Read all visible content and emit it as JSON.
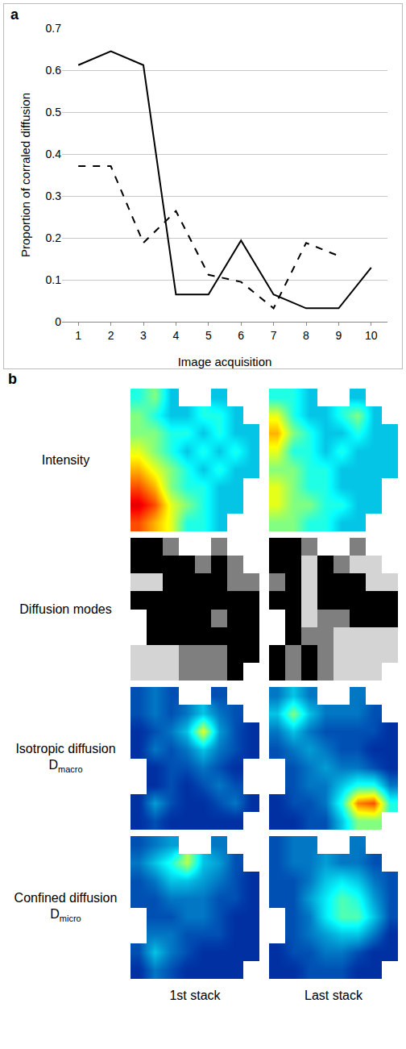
{
  "chart_data": [
    {
      "type": "line",
      "panel": "a",
      "x_label": "Image acquisition",
      "y_label": "Proportion of corraled diffusion",
      "x": [
        1,
        2,
        3,
        4,
        5,
        6,
        7,
        8,
        9,
        10
      ],
      "series": [
        {
          "color": "#000000",
          "line_style": "solid",
          "values": [
            0.612,
            0.645,
            0.612,
            0.065,
            0.065,
            0.194,
            0.065,
            0.032,
            0.032,
            0.129
          ]
        },
        {
          "color": "#000000",
          "line_style": "dash",
          "values": [
            0.371,
            0.371,
            0.188,
            0.264,
            0.112,
            0.095,
            0.032,
            0.188,
            0.157,
            null
          ]
        }
      ],
      "xlim": [
        0.5,
        10.5
      ],
      "xticks": [
        1,
        2,
        3,
        4,
        5,
        6,
        7,
        8,
        9,
        10
      ],
      "ylim": [
        0,
        0.7
      ],
      "yticks": [
        0,
        0.1,
        0.2,
        0.3,
        0.4,
        0.5,
        0.6,
        0.7
      ],
      "grid": true
    },
    {
      "type": "heatmap",
      "panel": "b",
      "columns": [
        "1st stack",
        "Last stack"
      ],
      "rows": [
        {
          "label": "Intensity",
          "color": "Jet",
          "zlim": [
            0,
            1
          ],
          "cells": [
            [
              [
                0.4,
                0.5,
                0.3,
                null,
                null,
                0.3,
                null,
                null
              ],
              [
                0.5,
                0.4,
                0.3,
                0.3,
                0.4,
                0.4,
                0.3,
                null
              ],
              [
                0.5,
                0.5,
                0.4,
                0.4,
                0.3,
                0.4,
                0.3,
                0.3
              ],
              [
                0.6,
                0.5,
                0.4,
                0.3,
                0.4,
                0.3,
                0.4,
                0.3
              ],
              [
                0.7,
                0.6,
                0.5,
                0.4,
                0.3,
                0.4,
                0.3,
                0.3
              ],
              [
                0.8,
                0.7,
                0.5,
                0.4,
                0.4,
                0.3,
                0.3,
                null
              ],
              [
                0.9,
                0.8,
                0.6,
                0.5,
                0.4,
                0.3,
                0.3,
                null
              ],
              [
                0.8,
                0.7,
                0.6,
                0.4,
                0.4,
                0.3,
                null,
                null
              ]
            ],
            [
              [
                0.4,
                0.4,
                0.3,
                null,
                null,
                0.3,
                null,
                null
              ],
              [
                0.6,
                0.4,
                0.3,
                0.3,
                0.4,
                0.5,
                0.3,
                null
              ],
              [
                0.7,
                0.5,
                0.4,
                0.3,
                0.3,
                0.4,
                0.3,
                0.3
              ],
              [
                0.6,
                0.4,
                0.4,
                0.3,
                0.4,
                0.3,
                0.3,
                0.3
              ],
              [
                0.5,
                0.5,
                0.4,
                0.4,
                0.3,
                0.3,
                0.3,
                0.3
              ],
              [
                0.6,
                0.5,
                0.4,
                0.4,
                0.3,
                0.3,
                0.3,
                null
              ],
              [
                0.6,
                0.5,
                0.5,
                0.4,
                0.4,
                0.3,
                0.3,
                null
              ],
              [
                0.5,
                0.5,
                0.4,
                0.4,
                0.3,
                0.3,
                null,
                null
              ]
            ]
          ]
        },
        {
          "label": "Diffusion modes",
          "color": "gray",
          "zlim": [
            0,
            2
          ],
          "cells": [
            [
              [
                0,
                0,
                1,
                null,
                null,
                1,
                null,
                null
              ],
              [
                0,
                0,
                0,
                0,
                1,
                0,
                1,
                null
              ],
              [
                2,
                2,
                0,
                0,
                0,
                0,
                1,
                1
              ],
              [
                0,
                0,
                0,
                0,
                0,
                0,
                0,
                0
              ],
              [
                null,
                0,
                0,
                0,
                0,
                1,
                0,
                0
              ],
              [
                null,
                0,
                0,
                0,
                0,
                0,
                0,
                0
              ],
              [
                2,
                2,
                2,
                1,
                1,
                1,
                0,
                0
              ],
              [
                2,
                2,
                2,
                1,
                1,
                1,
                0,
                null
              ]
            ],
            [
              [
                0,
                0,
                1,
                null,
                null,
                1,
                null,
                null
              ],
              [
                0,
                0,
                2,
                0,
                1,
                2,
                2,
                null
              ],
              [
                1,
                0,
                2,
                0,
                0,
                0,
                2,
                2
              ],
              [
                0,
                0,
                2,
                0,
                0,
                0,
                0,
                0
              ],
              [
                null,
                0,
                2,
                1,
                1,
                0,
                0,
                0
              ],
              [
                null,
                0,
                1,
                1,
                2,
                2,
                2,
                2
              ],
              [
                0,
                1,
                0,
                1,
                2,
                2,
                2,
                2
              ],
              [
                0,
                1,
                0,
                1,
                2,
                2,
                2,
                null
              ]
            ]
          ]
        },
        {
          "label": "Isotropic diffusion",
          "symbol": "D",
          "subscript": "macro",
          "color": "Jet",
          "zlim": [
            0,
            1
          ],
          "cells": [
            [
              [
                0.15,
                0.2,
                0.15,
                null,
                null,
                0.15,
                null,
                null
              ],
              [
                0.15,
                0.2,
                0.15,
                0.2,
                0.3,
                0.2,
                0.15,
                null
              ],
              [
                0.1,
                0.15,
                0.2,
                0.3,
                0.6,
                0.25,
                0.15,
                0.1
              ],
              [
                0.1,
                0.2,
                0.15,
                0.2,
                0.3,
                0.2,
                0.15,
                0.1
              ],
              [
                null,
                0.1,
                0.15,
                0.15,
                0.2,
                0.15,
                0.1,
                null
              ],
              [
                null,
                0.1,
                0.15,
                0.1,
                0.15,
                0.2,
                0.15,
                null
              ],
              [
                0.1,
                0.25,
                0.15,
                0.1,
                0.1,
                0.15,
                0.2,
                0.1
              ],
              [
                0.1,
                0.15,
                0.1,
                0.1,
                0.1,
                0.1,
                0.1,
                null
              ]
            ],
            [
              [
                0.2,
                0.3,
                0.2,
                null,
                null,
                0.2,
                null,
                null
              ],
              [
                0.3,
                0.5,
                0.3,
                0.2,
                0.2,
                0.2,
                0.15,
                null
              ],
              [
                0.2,
                0.3,
                0.2,
                0.15,
                0.15,
                0.15,
                0.15,
                0.1
              ],
              [
                0.15,
                0.2,
                0.25,
                0.2,
                0.15,
                0.15,
                0.1,
                0.1
              ],
              [
                null,
                0.15,
                0.2,
                0.25,
                0.2,
                0.2,
                0.15,
                0.1
              ],
              [
                null,
                0.15,
                0.2,
                0.2,
                0.3,
                0.4,
                0.4,
                0.2
              ],
              [
                0.1,
                0.15,
                0.15,
                0.2,
                0.4,
                0.75,
                0.8,
                0.4
              ],
              [
                0.1,
                0.1,
                0.15,
                0.15,
                0.3,
                0.5,
                0.5,
                null
              ]
            ]
          ]
        },
        {
          "label": "Confined diffusion",
          "symbol": "D",
          "subscript": "micro",
          "color": "Jet",
          "zlim": [
            0,
            1
          ],
          "cells": [
            [
              [
                0.15,
                0.2,
                0.25,
                null,
                null,
                0.2,
                null,
                null
              ],
              [
                0.2,
                0.3,
                0.4,
                0.55,
                0.3,
                0.25,
                0.15,
                null
              ],
              [
                0.15,
                0.2,
                0.3,
                0.3,
                0.25,
                0.2,
                0.15,
                0.1
              ],
              [
                0.15,
                0.15,
                0.2,
                0.2,
                0.2,
                0.15,
                0.15,
                0.1
              ],
              [
                null,
                0.15,
                0.15,
                0.2,
                0.2,
                0.15,
                0.1,
                0.1
              ],
              [
                null,
                0.2,
                0.2,
                0.15,
                0.15,
                0.15,
                0.1,
                0.1
              ],
              [
                0.15,
                0.3,
                0.2,
                0.15,
                0.1,
                0.1,
                0.1,
                0.1
              ],
              [
                0.1,
                0.2,
                0.15,
                0.1,
                0.1,
                0.1,
                0.1,
                null
              ]
            ],
            [
              [
                0.15,
                0.2,
                0.2,
                null,
                null,
                0.2,
                null,
                null
              ],
              [
                0.15,
                0.2,
                0.2,
                0.25,
                0.2,
                0.2,
                0.15,
                null
              ],
              [
                0.15,
                0.15,
                0.2,
                0.3,
                0.35,
                0.3,
                0.2,
                0.15
              ],
              [
                0.15,
                0.15,
                0.25,
                0.35,
                0.45,
                0.4,
                0.25,
                0.15
              ],
              [
                null,
                0.15,
                0.2,
                0.35,
                0.45,
                0.45,
                0.3,
                0.15
              ],
              [
                null,
                0.15,
                0.2,
                0.25,
                0.3,
                0.3,
                0.2,
                0.1
              ],
              [
                0.1,
                0.15,
                0.15,
                0.2,
                0.2,
                0.15,
                0.1,
                0.1
              ],
              [
                0.1,
                0.1,
                0.15,
                0.15,
                0.15,
                0.1,
                0.1,
                null
              ]
            ]
          ]
        }
      ]
    }
  ]
}
